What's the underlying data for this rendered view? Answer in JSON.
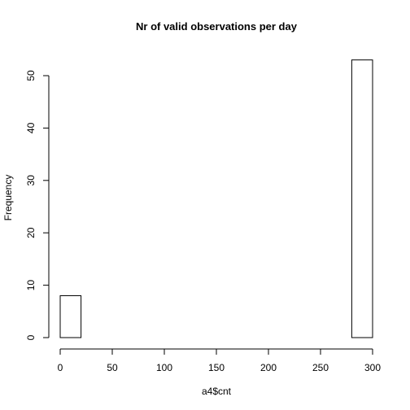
{
  "chart_data": {
    "type": "bar",
    "title": "Nr of valid observations per day",
    "xlabel": "a4$cnt",
    "ylabel": "Frequency",
    "bin_width": 20,
    "bins": [
      {
        "start": 0,
        "end": 20,
        "count": 8
      },
      {
        "start": 20,
        "end": 40,
        "count": 0
      },
      {
        "start": 40,
        "end": 60,
        "count": 0
      },
      {
        "start": 60,
        "end": 80,
        "count": 0
      },
      {
        "start": 80,
        "end": 100,
        "count": 0
      },
      {
        "start": 100,
        "end": 120,
        "count": 0
      },
      {
        "start": 120,
        "end": 140,
        "count": 0
      },
      {
        "start": 140,
        "end": 160,
        "count": 0
      },
      {
        "start": 160,
        "end": 180,
        "count": 0
      },
      {
        "start": 180,
        "end": 200,
        "count": 0
      },
      {
        "start": 200,
        "end": 220,
        "count": 0
      },
      {
        "start": 220,
        "end": 240,
        "count": 0
      },
      {
        "start": 240,
        "end": 260,
        "count": 0
      },
      {
        "start": 260,
        "end": 280,
        "count": 0
      },
      {
        "start": 280,
        "end": 300,
        "count": 53
      }
    ],
    "xlim": [
      0,
      300
    ],
    "ylim": [
      0,
      53
    ],
    "x_ticks": [
      0,
      50,
      100,
      150,
      200,
      250,
      300
    ],
    "y_ticks": [
      0,
      10,
      20,
      30,
      40,
      50
    ],
    "grid": false,
    "bar_fill": "#ffffff",
    "bar_stroke": "#000000"
  }
}
